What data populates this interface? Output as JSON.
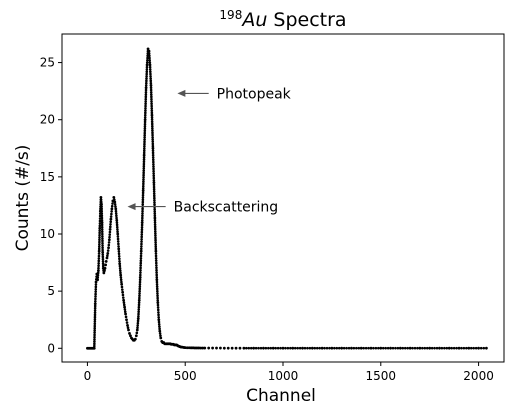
{
  "chart_data": {
    "type": "scatter",
    "title": {
      "superscript": "198",
      "element": "Au",
      "rest": " Spectra"
    },
    "xlabel": "Channel",
    "ylabel": "Counts (#/s)",
    "xlim": [
      -130,
      2130
    ],
    "ylim": [
      -1.2,
      27.5
    ],
    "xticks": [
      0,
      500,
      1000,
      1500,
      2000
    ],
    "yticks": [
      0,
      5,
      10,
      15,
      20,
      25
    ],
    "grid": false,
    "marker_color": "#000000",
    "annotations": [
      {
        "text": "Photopeak",
        "arrow_tip": [
          460,
          22.3
        ],
        "arrow_tail": [
          620,
          22.3
        ]
      },
      {
        "text": "Backscattering",
        "arrow_tip": [
          205,
          12.4
        ],
        "arrow_tail": [
          400,
          12.4
        ]
      }
    ],
    "series": [
      {
        "x": [
          0,
          5,
          10,
          15,
          20,
          25,
          30,
          35,
          40,
          44,
          48,
          52,
          56,
          60,
          63,
          66,
          69,
          72,
          75,
          78,
          81,
          84,
          87,
          90,
          93,
          96,
          100,
          104,
          108,
          112,
          116,
          120,
          125,
          130,
          135,
          140,
          145,
          150,
          155,
          160,
          165,
          170,
          175,
          180,
          185,
          190,
          195,
          200,
          205,
          210,
          215,
          220,
          225,
          230,
          235,
          240,
          245,
          250,
          255,
          260,
          265,
          270,
          275,
          280,
          285,
          290,
          295,
          300,
          305,
          310,
          315,
          320,
          325,
          330,
          335,
          340,
          345,
          350,
          355,
          360,
          365,
          370,
          375,
          380,
          385,
          390,
          395,
          400,
          404,
          408,
          412,
          416,
          420,
          424,
          428,
          432,
          436,
          440,
          444,
          448,
          452,
          456,
          460,
          464,
          468,
          472,
          476,
          480,
          485,
          490,
          495,
          500,
          510,
          520,
          530,
          540,
          550,
          560,
          570,
          580,
          590,
          600,
          620,
          640,
          660,
          680,
          700,
          720,
          740,
          760,
          780,
          800,
          850,
          900,
          950,
          1000,
          1050,
          1100,
          1150,
          1200,
          1250,
          1300,
          1350,
          1400,
          1450,
          1500,
          1550,
          1600,
          1650,
          1700,
          1750,
          1800,
          1850,
          1900,
          1950,
          2000,
          2040
        ],
        "y": [
          0,
          0,
          0,
          0,
          0,
          0,
          0,
          0,
          3.9,
          5.8,
          6.5,
          6.0,
          6.8,
          8.5,
          10.5,
          12.0,
          13.2,
          12.6,
          11.0,
          8.4,
          7.0,
          6.6,
          6.8,
          7.0,
          7.3,
          7.6,
          7.9,
          8.3,
          8.8,
          9.5,
          10.4,
          11.3,
          12.2,
          12.9,
          13.2,
          12.8,
          12.2,
          11.2,
          10.0,
          8.7,
          7.4,
          6.4,
          5.6,
          4.9,
          4.2,
          3.6,
          3.0,
          2.5,
          2.0,
          1.6,
          1.3,
          1.1,
          0.9,
          0.8,
          0.7,
          0.7,
          0.8,
          1.1,
          1.6,
          2.6,
          4.2,
          6.2,
          8.5,
          11.0,
          13.8,
          16.9,
          20.0,
          22.8,
          24.8,
          26.2,
          26.0,
          24.8,
          23.0,
          20.4,
          17.5,
          14.5,
          11.4,
          8.5,
          6.0,
          4.0,
          2.5,
          1.5,
          0.9,
          0.6,
          0.5,
          0.5,
          0.4,
          0.4,
          0.4,
          0.4,
          0.4,
          0.4,
          0.4,
          0.4,
          0.35,
          0.35,
          0.35,
          0.35,
          0.3,
          0.3,
          0.3,
          0.3,
          0.25,
          0.2,
          0.18,
          0.15,
          0.12,
          0.1,
          0.1,
          0.08,
          0.07,
          0.06,
          0.05,
          0.05,
          0.04,
          0.04,
          0.03,
          0.03,
          0.03,
          0.02,
          0.02,
          0.02,
          0.02,
          0.02,
          0.02,
          0.02,
          0.01,
          0.01,
          0.01,
          0.01,
          0.01,
          0.01,
          0.01,
          0.01,
          0.01,
          0.01,
          0.01,
          0.01,
          0.01,
          0.01,
          0.01,
          0.01,
          0.01,
          0.01,
          0.01,
          0.01,
          0.01,
          0.01,
          0.01,
          0.01,
          0.01,
          0.01,
          0.01,
          0.01,
          0.01,
          0.01,
          0.01
        ]
      }
    ]
  }
}
